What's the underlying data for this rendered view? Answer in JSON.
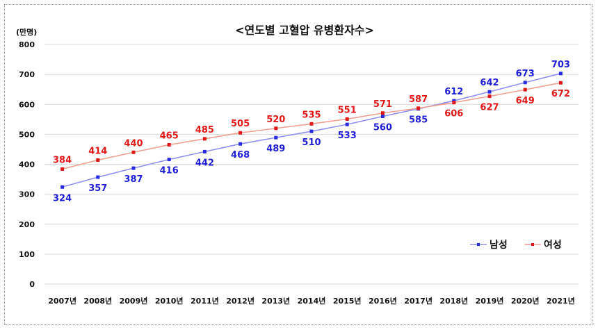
{
  "chart_data": {
    "type": "line",
    "title": "<연도별 고혈압 유병환자수>",
    "unit_label": "(만명)",
    "categories": [
      "2007년",
      "2008년",
      "2009년",
      "2010년",
      "2011년",
      "2012년",
      "2013년",
      "2014년",
      "2015년",
      "2016년",
      "2017년",
      "2018년",
      "2019년",
      "2020년",
      "2021년"
    ],
    "ylim": [
      0,
      800
    ],
    "yticks": [
      0,
      100,
      200,
      300,
      400,
      500,
      600,
      700,
      800
    ],
    "grid": true,
    "legend_position": "bottom-right",
    "series": [
      {
        "name": "남성",
        "color": "#2a2ae0",
        "label_color": "#1f1fd6",
        "line_color": "#8f8ff0",
        "values": [
          324,
          357,
          387,
          416,
          442,
          468,
          489,
          510,
          533,
          560,
          585,
          612,
          642,
          673,
          703
        ]
      },
      {
        "name": "여성",
        "color": "#e01818",
        "label_color": "#e01818",
        "line_color": "#f0a090",
        "values": [
          384,
          414,
          440,
          465,
          485,
          505,
          520,
          535,
          551,
          571,
          587,
          606,
          627,
          649,
          672
        ]
      }
    ]
  }
}
